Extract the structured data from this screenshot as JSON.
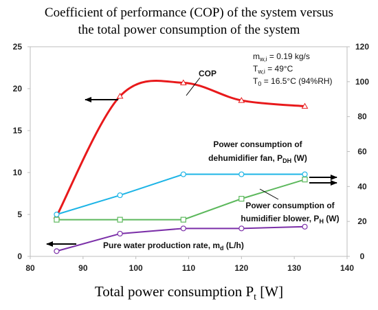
{
  "chart_data": {
    "type": "line",
    "title_lines": [
      "Coefficient of performance (COP) of the system versus",
      "the total power consumption of the system"
    ],
    "xlabel": "Total power consumption P",
    "xlabel_sub": "t",
    "xlabel_unit": " [W]",
    "xlim": [
      80,
      140
    ],
    "x_ticks": [
      80,
      90,
      100,
      110,
      120,
      130,
      140
    ],
    "ylim_left": [
      0,
      25
    ],
    "y_ticks_left": [
      0,
      5,
      10,
      15,
      20,
      25
    ],
    "ylim_right": [
      0,
      120
    ],
    "y_ticks_right": [
      0,
      20,
      40,
      60,
      80,
      100,
      120
    ],
    "grid": false,
    "series": [
      {
        "key": "cop",
        "axis": "left",
        "color": "#e8191b",
        "marker": "triangle",
        "smooth": true,
        "x": [
          85,
          97,
          109,
          120,
          132
        ],
        "y": [
          4.8,
          19.1,
          20.7,
          18.6,
          17.9
        ]
      },
      {
        "key": "fan",
        "axis": "right",
        "color": "#1cb4e6",
        "marker": "circle",
        "smooth": false,
        "x": [
          85,
          97,
          109,
          120,
          132
        ],
        "y": [
          24,
          35,
          47,
          47,
          47
        ]
      },
      {
        "key": "blower",
        "axis": "right",
        "color": "#5cb85c",
        "marker": "square",
        "smooth": false,
        "x": [
          85,
          97,
          109,
          120,
          132
        ],
        "y": [
          21,
          21,
          21,
          33,
          44
        ]
      },
      {
        "key": "water",
        "axis": "right",
        "color": "#7b2fa8",
        "marker": "circle",
        "smooth": false,
        "x": [
          85,
          97,
          109,
          120,
          132
        ],
        "y": [
          3,
          13,
          16,
          16,
          17
        ]
      }
    ],
    "annotations": {
      "cop": {
        "text": "COP"
      },
      "fan": {
        "line1": "Power consumption of",
        "line2": "dehumidifier fan, P",
        "sub": "DH",
        "unit": " (W)"
      },
      "blower": {
        "line1": "Power consumption of",
        "line2": "humidifier blower, P",
        "sub": "H",
        "unit": " (W)"
      },
      "water": {
        "line": "Pure water production rate, m",
        "sub": "d",
        "unit": " (L/h)"
      }
    },
    "conditions": [
      {
        "main": "m",
        "sub": "w,i",
        "rest": " = 0.19 kg/s"
      },
      {
        "main": "T",
        "sub": "w,i",
        "rest": " = 49°C"
      },
      {
        "main": "T",
        "sub": "0",
        "rest": " = 16.5°C (94%RH)"
      }
    ]
  }
}
